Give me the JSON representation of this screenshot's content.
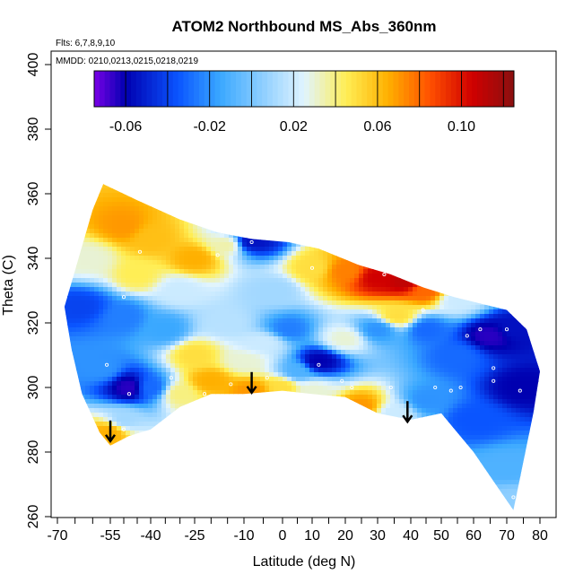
{
  "chart_data": {
    "type": "heatmap",
    "title": "ATOM2 Northbound MS_Abs_360nm",
    "annotations": {
      "flights": "Flts: 6,7,8,9,10",
      "dates": "MMDD: 0210,0213,0215,0218,0219"
    },
    "xlabel": "Latitude (deg N)",
    "ylabel": "Theta (C)",
    "xlim": [
      -70,
      82
    ],
    "ylim": [
      260,
      402
    ],
    "x_tick_labels": [
      -70,
      -55,
      -40,
      -25,
      -10,
      0,
      10,
      20,
      30,
      40,
      50,
      60,
      70,
      80
    ],
    "y_tick_labels": [
      260,
      280,
      300,
      320,
      340,
      360,
      380,
      400
    ],
    "colorbar": {
      "range": [
        -0.075,
        0.125
      ],
      "tick_labels": [
        "-0.06",
        "-0.02",
        "0.02",
        "0.06",
        "0.10"
      ],
      "tick_values": [
        -0.06,
        -0.02,
        0.02,
        0.06,
        0.1
      ],
      "colors": [
        "#7a00e6",
        "#0000b0",
        "#0a55ff",
        "#3aa8ff",
        "#e0f4ff",
        "#ffee55",
        "#ffb000",
        "#ff5000",
        "#d00000",
        "#8a1010"
      ],
      "color_stops": [
        -0.075,
        -0.06,
        -0.035,
        -0.015,
        0.025,
        0.045,
        0.065,
        0.085,
        0.105,
        0.125
      ]
    },
    "domain_outline": [
      [
        -57,
        363
      ],
      [
        -45,
        358
      ],
      [
        -30,
        352
      ],
      [
        -18,
        348
      ],
      [
        -8,
        346
      ],
      [
        2,
        345
      ],
      [
        12,
        343
      ],
      [
        24,
        338
      ],
      [
        34,
        335
      ],
      [
        44,
        331
      ],
      [
        54,
        328
      ],
      [
        62,
        326
      ],
      [
        70,
        324
      ],
      [
        76,
        318
      ],
      [
        80,
        305
      ],
      [
        78,
        292
      ],
      [
        76,
        282
      ],
      [
        74,
        272
      ],
      [
        72,
        262
      ],
      [
        68,
        268
      ],
      [
        60,
        280
      ],
      [
        50,
        292
      ],
      [
        40,
        290
      ],
      [
        30,
        292
      ],
      [
        20,
        297
      ],
      [
        10,
        298
      ],
      [
        0,
        299
      ],
      [
        -10,
        298
      ],
      [
        -20,
        298
      ],
      [
        -30,
        294
      ],
      [
        -40,
        287
      ],
      [
        -48,
        285
      ],
      [
        -55,
        282
      ],
      [
        -58,
        286
      ],
      [
        -63,
        298
      ],
      [
        -66,
        312
      ],
      [
        -68,
        325
      ],
      [
        -64,
        340
      ],
      [
        -60,
        355
      ]
    ],
    "value_fields": [
      {
        "x": -50,
        "y": 350,
        "v": 0.07
      },
      {
        "x": -40,
        "y": 346,
        "v": 0.06
      },
      {
        "x": -25,
        "y": 340,
        "v": 0.065
      },
      {
        "x": -15,
        "y": 344,
        "v": 0.035
      },
      {
        "x": -8,
        "y": 345,
        "v": -0.055
      },
      {
        "x": 10,
        "y": 337,
        "v": 0.05
      },
      {
        "x": 20,
        "y": 336,
        "v": 0.075
      },
      {
        "x": 30,
        "y": 334,
        "v": 0.105
      },
      {
        "x": 38,
        "y": 333,
        "v": 0.11
      },
      {
        "x": 45,
        "y": 330,
        "v": 0.08
      },
      {
        "x": 55,
        "y": 327,
        "v": 0.02
      },
      {
        "x": -62,
        "y": 340,
        "v": 0.03
      },
      {
        "x": -64,
        "y": 325,
        "v": -0.04
      },
      {
        "x": -50,
        "y": 322,
        "v": -0.025
      },
      {
        "x": -35,
        "y": 318,
        "v": -0.015
      },
      {
        "x": -25,
        "y": 310,
        "v": 0.05
      },
      {
        "x": -20,
        "y": 302,
        "v": 0.065
      },
      {
        "x": -15,
        "y": 320,
        "v": 0.015
      },
      {
        "x": -5,
        "y": 314,
        "v": 0.02
      },
      {
        "x": 2,
        "y": 318,
        "v": -0.025
      },
      {
        "x": 12,
        "y": 308,
        "v": -0.06
      },
      {
        "x": 20,
        "y": 315,
        "v": 0.03
      },
      {
        "x": 30,
        "y": 318,
        "v": -0.02
      },
      {
        "x": 36,
        "y": 322,
        "v": 0.05
      },
      {
        "x": 45,
        "y": 318,
        "v": -0.03
      },
      {
        "x": 55,
        "y": 310,
        "v": -0.03
      },
      {
        "x": 65,
        "y": 316,
        "v": -0.065
      },
      {
        "x": 72,
        "y": 318,
        "v": -0.055
      },
      {
        "x": 75,
        "y": 300,
        "v": -0.06
      },
      {
        "x": -58,
        "y": 306,
        "v": -0.02
      },
      {
        "x": -48,
        "y": 300,
        "v": -0.065
      },
      {
        "x": -40,
        "y": 300,
        "v": -0.03
      },
      {
        "x": -55,
        "y": 286,
        "v": 0.065
      },
      {
        "x": -50,
        "y": 290,
        "v": 0.01
      },
      {
        "x": -30,
        "y": 298,
        "v": 0.04
      },
      {
        "x": -8,
        "y": 299,
        "v": 0.07
      },
      {
        "x": 0,
        "y": 300,
        "v": 0.05
      },
      {
        "x": 10,
        "y": 299,
        "v": 0.03
      },
      {
        "x": 25,
        "y": 294,
        "v": 0.07
      },
      {
        "x": 35,
        "y": 292,
        "v": 0.02
      },
      {
        "x": 45,
        "y": 296,
        "v": -0.02
      },
      {
        "x": 60,
        "y": 290,
        "v": -0.035
      },
      {
        "x": 70,
        "y": 275,
        "v": -0.01
      },
      {
        "x": 72,
        "y": 265,
        "v": 0.005
      },
      {
        "x": -10,
        "y": 308,
        "v": 0.03
      },
      {
        "x": 5,
        "y": 305,
        "v": -0.01
      },
      {
        "x": -2,
        "y": 330,
        "v": 0.01
      },
      {
        "x": -30,
        "y": 330,
        "v": 0.02
      },
      {
        "x": -45,
        "y": 335,
        "v": 0.045
      }
    ],
    "sample_points": [
      [
        -44,
        342
      ],
      [
        -18,
        341
      ],
      [
        -8,
        345
      ],
      [
        10,
        337
      ],
      [
        32,
        335
      ],
      [
        38,
        335
      ],
      [
        -50,
        328
      ],
      [
        -56,
        307
      ],
      [
        -50,
        287
      ],
      [
        -48,
        298
      ],
      [
        -33,
        303
      ],
      [
        -22,
        298
      ],
      [
        -14,
        301
      ],
      [
        -4,
        303
      ],
      [
        12,
        307
      ],
      [
        19,
        302
      ],
      [
        22,
        300
      ],
      [
        34,
        300
      ],
      [
        44,
        324
      ],
      [
        48,
        300
      ],
      [
        53,
        299
      ],
      [
        56,
        300
      ],
      [
        58,
        316
      ],
      [
        62,
        318
      ],
      [
        66,
        306
      ],
      [
        66,
        302
      ],
      [
        70,
        318
      ],
      [
        72,
        266
      ],
      [
        74,
        299
      ]
    ],
    "arrows": [
      [
        -55,
        287
      ],
      [
        -8,
        302
      ],
      [
        39,
        293
      ]
    ]
  }
}
